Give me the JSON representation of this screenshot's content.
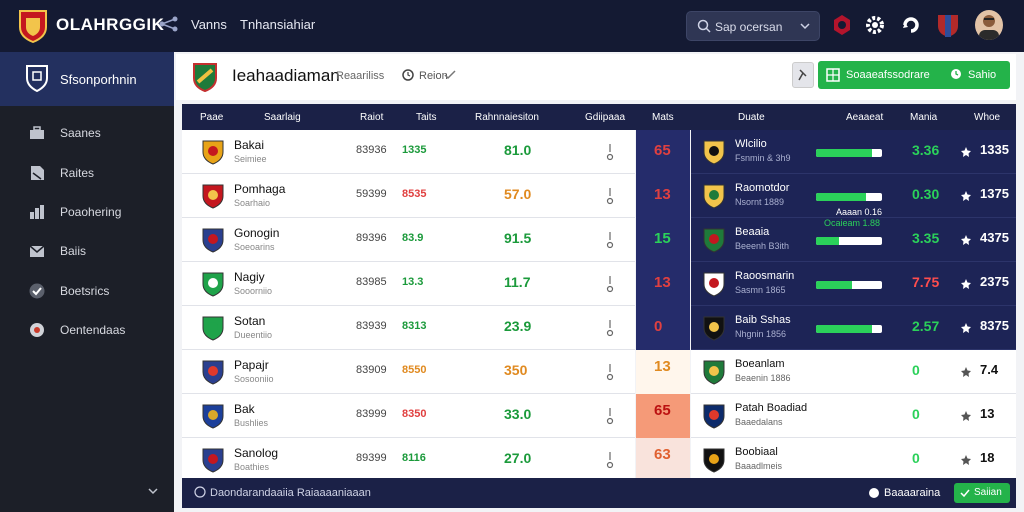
{
  "topbar": {
    "brand": "OLAHRGGIK",
    "nav": [
      "Vanns",
      "Tnhansiahiar"
    ],
    "search_text": "Sap ocersan"
  },
  "sidebar": {
    "title": "Sfsonporhnin",
    "items": [
      "Saanes",
      "Raites",
      "Poaohering",
      "Baiis",
      "Boetsrics",
      "Oentendaas"
    ]
  },
  "header": {
    "title": "Ieahaadiaman",
    "subtitle": "Reaariliss",
    "meta": "Reion",
    "button_left": "Soaaeafssodrare",
    "button_right": "Sahio"
  },
  "table": {
    "headers": [
      "Paae",
      "Saarlaig",
      "Raiot",
      "Taits",
      "Rahnnaiesiton",
      "Gdiipaaa",
      "Mats",
      "Duate",
      "Aeaaeat",
      "Mania",
      "Whoe"
    ],
    "rows": [
      {
        "name": "Bakai",
        "sub": "Seimiee",
        "c1": "83936",
        "c2": "1335",
        "c3": "81.0",
        "mid": "65",
        "right_name": "Wlcilio",
        "right_sub": "Fsnmin & 3h9",
        "bar_pct": 0.85,
        "v1": "3.36",
        "v2": "1335"
      },
      {
        "name": "Pomhaga",
        "sub": "Soarhaio",
        "c1": "59399",
        "c2": "8535",
        "c3": "57.0",
        "mid": "13",
        "right_name": "Raomotdor",
        "right_sub": "Nsornt 1889",
        "bar_pct": 0.75,
        "v1": "0.30",
        "v2": "1375"
      },
      {
        "name": "Gonogin",
        "sub": "Soeoarins",
        "c1": "89396",
        "c2": "83.9",
        "c3": "91.5",
        "mid": "15",
        "right_name": "Beaaia",
        "right_sub": "Beeenh B3ith",
        "bar_pct": 0.35,
        "v1": "3.35",
        "v2": "4375"
      },
      {
        "name": "Nagiy",
        "sub": "Sooorniio",
        "c1": "83985",
        "c2": "13.3",
        "c3": "11.7",
        "mid": "13",
        "right_name": "Raoosmarin",
        "right_sub": "Sasmn 1865",
        "bar_pct": 0.55,
        "v1": "7.75",
        "v2": "2375"
      },
      {
        "name": "Sotan",
        "sub": "Dueentiio",
        "c1": "83939",
        "c2": "8313",
        "c3": "23.9",
        "mid": "0",
        "right_name": "Baib Sshas",
        "right_sub": "Nhgnin 1856",
        "bar_pct": 0.85,
        "v1": "2.57",
        "v2": "8375"
      },
      {
        "name": "Papajr",
        "sub": "Sosooniio",
        "c1": "83909",
        "c2": "8550",
        "c3": "350",
        "mid": "13",
        "right_name": "Boeanlam",
        "right_sub": "Beaenin 1886",
        "bar_pct": 0.0,
        "v1": "0",
        "v2": "7.4"
      },
      {
        "name": "Bak",
        "sub": "Bushlies",
        "c1": "83999",
        "c2": "8350",
        "c3": "33.0",
        "mid": "65",
        "right_name": "Patah Boadiad",
        "right_sub": "Baaedalans",
        "bar_pct": 0.0,
        "v1": "0",
        "v2": "13"
      },
      {
        "name": "Sanolog",
        "sub": "Boathies",
        "c1": "89399",
        "c2": "8116",
        "c3": "27.0",
        "mid": "63",
        "right_name": "Boobiaal",
        "right_sub": "Baaadlmeis",
        "bar_pct": 0.0,
        "v1": "0",
        "v2": "18"
      }
    ],
    "extra": [
      "Aaaan 0.16",
      "Ocaieam 1.88"
    ]
  },
  "footer": {
    "left": "Daondarandaaiia Raiaaaaniaaan",
    "right": "Baaaaraina",
    "button": "Saiian"
  }
}
